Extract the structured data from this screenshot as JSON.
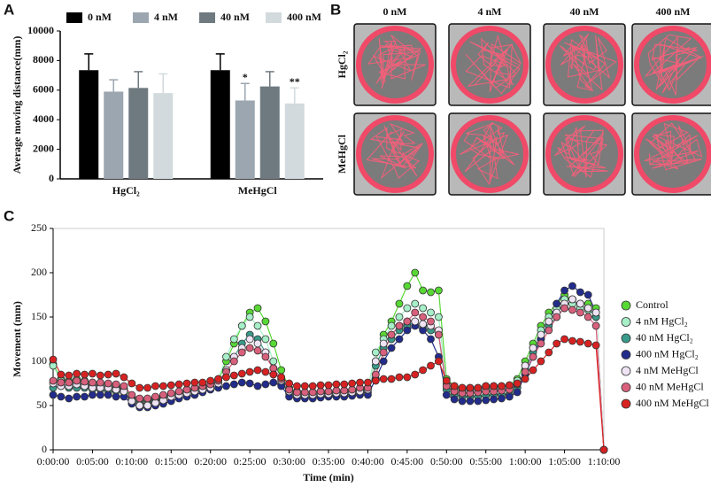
{
  "chart_data": [
    {
      "type": "bar",
      "panel_label": "A",
      "y_label": "Average moving distance(mm)",
      "categories": [
        "HgCl₂",
        "MeHgCl"
      ],
      "series": [
        {
          "name": "0 nM",
          "color": "#000000",
          "values": [
            7350,
            7350
          ],
          "errors": [
            1100,
            1100
          ],
          "significance": [
            null,
            null
          ]
        },
        {
          "name": "4 nM",
          "color": "#9ba6b0",
          "values": [
            5900,
            5300
          ],
          "errors": [
            800,
            1150
          ],
          "significance": [
            null,
            "*"
          ]
        },
        {
          "name": "40 nM",
          "color": "#6f7a80",
          "values": [
            6150,
            6250
          ],
          "errors": [
            1100,
            1000
          ],
          "significance": [
            null,
            null
          ]
        },
        {
          "name": "400 nM",
          "color": "#d2dadd",
          "values": [
            5800,
            5100
          ],
          "errors": [
            1300,
            1050
          ],
          "significance": [
            null,
            "**"
          ]
        }
      ],
      "ylim": [
        0,
        10000
      ],
      "yticks": [
        0,
        2000,
        4000,
        6000,
        8000,
        10000
      ]
    },
    {
      "type": "line",
      "panel_label": "C",
      "x_label": "Time (min)",
      "y_label": "Movement (mm)",
      "x": [
        0,
        1,
        2,
        3,
        4,
        5,
        6,
        7,
        8,
        9,
        10,
        11,
        12,
        13,
        14,
        15,
        16,
        17,
        18,
        19,
        20,
        21,
        22,
        23,
        24,
        25,
        26,
        27,
        28,
        29,
        30,
        31,
        32,
        33,
        34,
        35,
        36,
        37,
        38,
        39,
        40,
        41,
        42,
        43,
        44,
        45,
        46,
        47,
        48,
        49,
        50,
        51,
        52,
        53,
        54,
        55,
        56,
        57,
        58,
        59,
        60,
        61,
        62,
        63,
        64,
        65,
        66,
        67,
        68,
        69,
        70
      ],
      "xlim": [
        0,
        70
      ],
      "xticks": [
        {
          "value": 0,
          "label": "0:00:00"
        },
        {
          "value": 5,
          "label": "0:05:00"
        },
        {
          "value": 10,
          "label": "0:10:00"
        },
        {
          "value": 15,
          "label": "0:15:00"
        },
        {
          "value": 20,
          "label": "0:20:00"
        },
        {
          "value": 25,
          "label": "0:25:00"
        },
        {
          "value": 30,
          "label": "0:30:00"
        },
        {
          "value": 35,
          "label": "0:35:00"
        },
        {
          "value": 40,
          "label": "0:40:00"
        },
        {
          "value": 45,
          "label": "0:45:00"
        },
        {
          "value": 50,
          "label": "0:50:00"
        },
        {
          "value": 55,
          "label": "0:55:00"
        },
        {
          "value": 60,
          "label": "1:00:00"
        },
        {
          "value": 65,
          "label": "1:05:00"
        },
        {
          "value": 70,
          "label": "1:10:00"
        }
      ],
      "ylim": [
        0,
        250
      ],
      "yticks": [
        0,
        50,
        100,
        150,
        200,
        250
      ],
      "series": [
        {
          "name": "Control",
          "color": "#58d834",
          "values": [
            97,
            80,
            78,
            80,
            78,
            76,
            75,
            74,
            72,
            70,
            60,
            55,
            56,
            58,
            60,
            62,
            65,
            68,
            70,
            72,
            73,
            78,
            100,
            120,
            140,
            155,
            160,
            145,
            120,
            90,
            70,
            66,
            65,
            65,
            66,
            65,
            66,
            67,
            66,
            68,
            70,
            100,
            130,
            145,
            165,
            185,
            200,
            180,
            178,
            180,
            80,
            72,
            70,
            70,
            70,
            72,
            72,
            72,
            73,
            80,
            100,
            120,
            140,
            155,
            165,
            175,
            170,
            165,
            165,
            160,
            0
          ]
        },
        {
          "name": "4 nM HgCl₂",
          "color": "#a6efc8",
          "values": [
            95,
            78,
            76,
            75,
            74,
            73,
            72,
            70,
            70,
            68,
            58,
            55,
            55,
            57,
            60,
            62,
            64,
            66,
            68,
            70,
            72,
            80,
            105,
            125,
            140,
            150,
            140,
            125,
            100,
            80,
            68,
            64,
            63,
            63,
            64,
            64,
            65,
            65,
            66,
            67,
            70,
            110,
            125,
            140,
            150,
            160,
            165,
            160,
            155,
            150,
            75,
            70,
            68,
            68,
            69,
            70,
            70,
            71,
            72,
            78,
            95,
            115,
            135,
            150,
            160,
            170,
            165,
            160,
            158,
            150,
            0
          ]
        },
        {
          "name": "40 nM HgCl₂",
          "color": "#3a9a8a",
          "values": [
            70,
            72,
            70,
            70,
            70,
            68,
            68,
            66,
            66,
            65,
            56,
            52,
            52,
            55,
            57,
            60,
            62,
            64,
            66,
            68,
            70,
            75,
            90,
            105,
            120,
            130,
            125,
            110,
            92,
            75,
            64,
            60,
            60,
            60,
            61,
            61,
            62,
            62,
            63,
            64,
            65,
            95,
            115,
            125,
            135,
            140,
            145,
            140,
            135,
            130,
            68,
            62,
            60,
            60,
            60,
            61,
            62,
            62,
            63,
            70,
            90,
            110,
            125,
            140,
            150,
            160,
            170,
            165,
            160,
            150,
            0
          ]
        },
        {
          "name": "400 nM HgCl₂",
          "color": "#222c8c",
          "values": [
            62,
            60,
            58,
            60,
            60,
            62,
            62,
            62,
            60,
            60,
            52,
            48,
            48,
            50,
            52,
            55,
            58,
            60,
            62,
            65,
            68,
            70,
            72,
            74,
            76,
            75,
            72,
            74,
            76,
            72,
            60,
            58,
            58,
            58,
            59,
            60,
            60,
            60,
            61,
            62,
            62,
            80,
            100,
            115,
            125,
            135,
            140,
            135,
            125,
            105,
            62,
            57,
            55,
            55,
            55,
            56,
            57,
            58,
            60,
            65,
            85,
            105,
            125,
            145,
            165,
            180,
            185,
            178,
            175,
            155,
            0
          ]
        },
        {
          "name": "4 nM MeHgCl",
          "color": "#efe4f4",
          "values": [
            75,
            72,
            72,
            74,
            72,
            70,
            70,
            70,
            68,
            66,
            55,
            50,
            50,
            53,
            56,
            60,
            62,
            64,
            66,
            68,
            70,
            75,
            90,
            105,
            115,
            125,
            120,
            110,
            92,
            78,
            66,
            62,
            62,
            62,
            63,
            63,
            64,
            64,
            65,
            66,
            68,
            100,
            120,
            130,
            140,
            145,
            145,
            142,
            140,
            135,
            72,
            66,
            64,
            64,
            65,
            66,
            66,
            67,
            68,
            74,
            95,
            115,
            130,
            145,
            155,
            165,
            170,
            165,
            160,
            155,
            0
          ]
        },
        {
          "name": "40 nM MeHgCl",
          "color": "#d8607c",
          "values": [
            78,
            76,
            76,
            78,
            77,
            76,
            76,
            75,
            74,
            72,
            62,
            58,
            58,
            60,
            62,
            64,
            66,
            68,
            70,
            72,
            74,
            78,
            88,
            100,
            110,
            115,
            112,
            105,
            92,
            80,
            68,
            65,
            65,
            65,
            66,
            66,
            67,
            67,
            68,
            70,
            70,
            85,
            110,
            130,
            140,
            145,
            155,
            150,
            145,
            130,
            72,
            66,
            64,
            64,
            65,
            66,
            66,
            67,
            68,
            74,
            88,
            105,
            120,
            135,
            150,
            160,
            158,
            155,
            150,
            140,
            0
          ]
        },
        {
          "name": "400 nM MeHgCl",
          "color": "#d82222",
          "values": [
            102,
            85,
            84,
            86,
            85,
            86,
            84,
            85,
            86,
            82,
            75,
            70,
            70,
            72,
            72,
            73,
            74,
            75,
            76,
            76,
            78,
            80,
            82,
            84,
            86,
            88,
            90,
            88,
            85,
            82,
            75,
            72,
            72,
            72,
            73,
            73,
            74,
            74,
            75,
            76,
            76,
            78,
            80,
            80,
            82,
            82,
            85,
            90,
            95,
            100,
            78,
            72,
            70,
            70,
            70,
            72,
            72,
            72,
            73,
            75,
            80,
            90,
            100,
            110,
            120,
            125,
            123,
            122,
            120,
            118,
            0
          ]
        }
      ]
    }
  ],
  "panel_b": {
    "panel_label": "B",
    "columns": [
      "0 nM",
      "4 nM",
      "40 nM",
      "400 nM"
    ],
    "rows": [
      "HgCl₂",
      "MeHgCl"
    ]
  }
}
